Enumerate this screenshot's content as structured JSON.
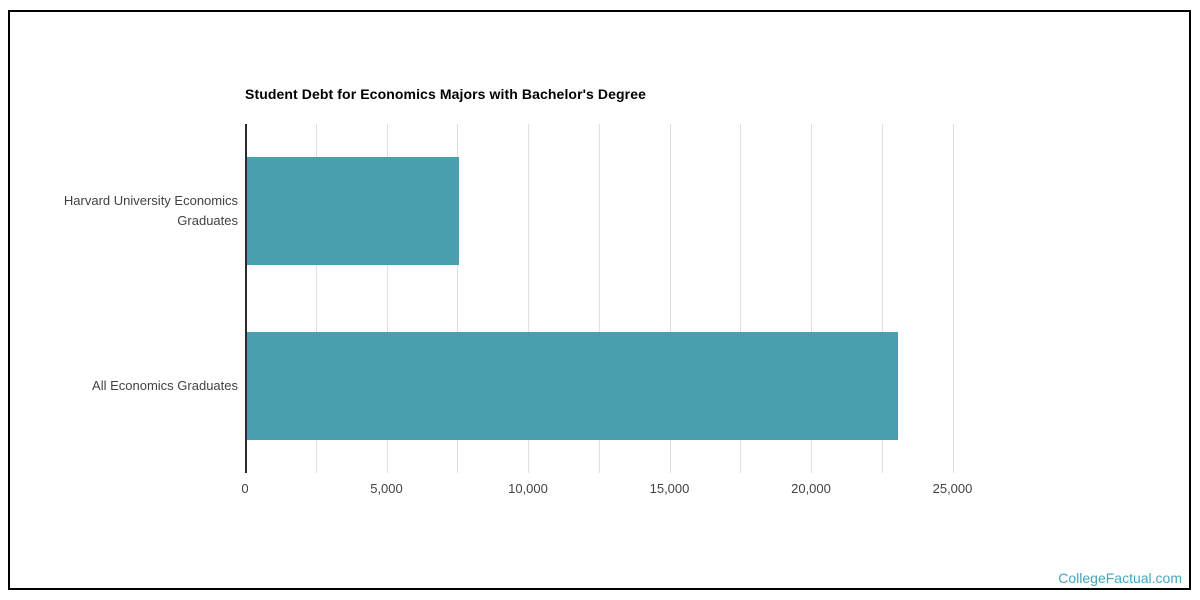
{
  "page": {
    "watermark": "CollegeFactual.com",
    "colors": {
      "bar": "#4A9FAF",
      "watermark": "#49A4BC",
      "grid": "#E0E0E0",
      "axis": "#2B2B2B",
      "title_text": "#000000",
      "label_text": "#424242"
    }
  },
  "chart_data": {
    "type": "bar",
    "orientation": "horizontal",
    "title": "Student Debt for Economics Majors with Bachelor's Degree",
    "categories": [
      "Harvard University Economics Graduates",
      "All Economics Graduates"
    ],
    "values": [
      7500,
      23000
    ],
    "series_color": "#4A9FAF",
    "xlabel": "",
    "ylabel": "",
    "xlim": [
      0,
      25000
    ],
    "x_tick_values": [
      0,
      5000,
      10000,
      15000,
      20000,
      25000
    ],
    "x_tick_labels": [
      "0",
      "5,000",
      "10,000",
      "15,000",
      "20,000",
      "25,000"
    ],
    "minor_gridline_step": 2500,
    "grid": "vertical-only",
    "legend": "none"
  }
}
